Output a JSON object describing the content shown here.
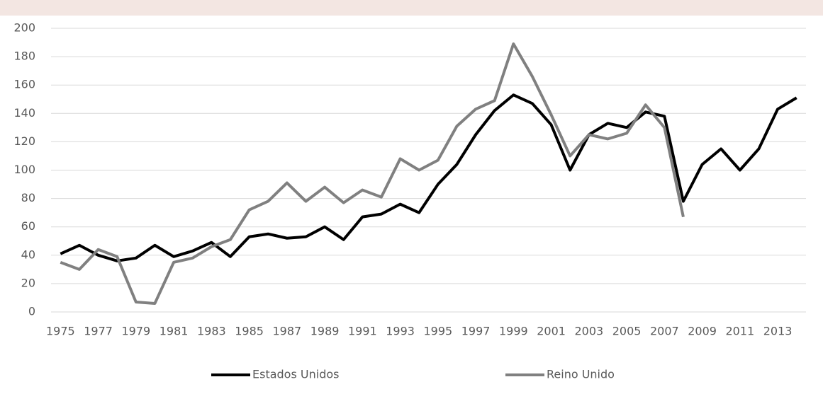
{
  "chart_data": {
    "type": "line",
    "x": [
      1975,
      1976,
      1977,
      1978,
      1979,
      1980,
      1981,
      1982,
      1983,
      1984,
      1985,
      1986,
      1987,
      1988,
      1989,
      1990,
      1991,
      1992,
      1993,
      1994,
      1995,
      1996,
      1997,
      1998,
      1999,
      2000,
      2001,
      2002,
      2003,
      2004,
      2005,
      2006,
      2007,
      2008,
      2009,
      2010,
      2011,
      2012,
      2013,
      2014
    ],
    "xlim": [
      1974.5,
      2014.5
    ],
    "xticks": [
      1975,
      1977,
      1979,
      1981,
      1983,
      1985,
      1987,
      1989,
      1991,
      1993,
      1995,
      1997,
      1999,
      2001,
      2003,
      2005,
      2007,
      2009,
      2011,
      2013
    ],
    "ylim": [
      0,
      200
    ],
    "yticks": [
      0,
      20,
      40,
      60,
      80,
      100,
      120,
      140,
      160,
      180,
      200
    ],
    "grid": true,
    "legend": "bottom",
    "series": [
      {
        "name": "Estados Unidos",
        "color": "#000000",
        "values": [
          41,
          47,
          40,
          36,
          38,
          47,
          39,
          43,
          49,
          39,
          53,
          55,
          52,
          53,
          60,
          51,
          67,
          69,
          76,
          70,
          90,
          104,
          125,
          142,
          153,
          147,
          132,
          100,
          125,
          133,
          130,
          141,
          138,
          78,
          104,
          115,
          100,
          115,
          143,
          151
        ]
      },
      {
        "name": "Reino Unido",
        "color": "#808080",
        "values": [
          35,
          30,
          44,
          39,
          7,
          6,
          35,
          38,
          46,
          51,
          72,
          78,
          91,
          78,
          88,
          77,
          86,
          81,
          108,
          100,
          107,
          131,
          143,
          149,
          189,
          166,
          139,
          110,
          125,
          122,
          126,
          146,
          130,
          67,
          null,
          null,
          null,
          null,
          null,
          null
        ]
      }
    ]
  }
}
